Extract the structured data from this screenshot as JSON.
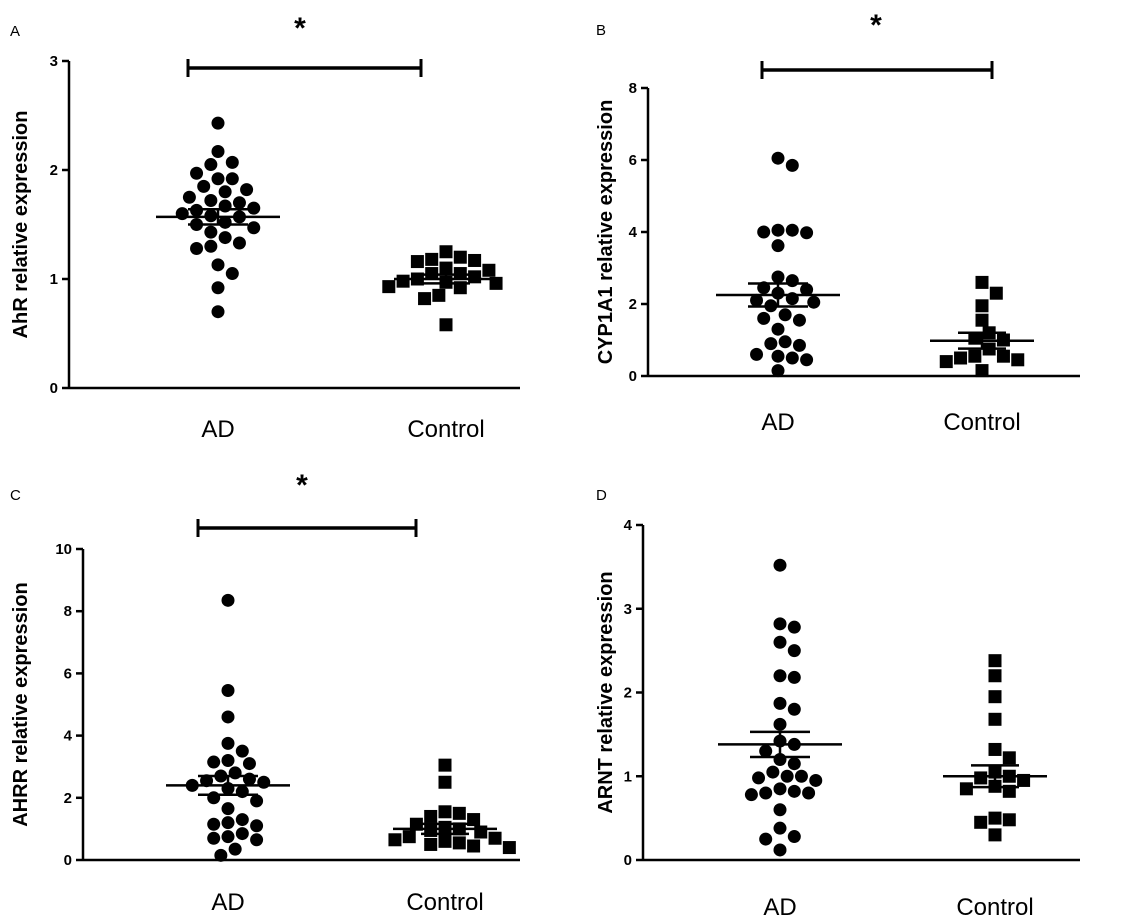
{
  "chart_data": [
    {
      "type": "scatter",
      "panel_label": "A",
      "categories": [
        "AD",
        "Control"
      ],
      "ylabel": "AhR relative expression",
      "ylim": [
        0,
        3
      ],
      "yticks": [
        "0",
        "1",
        "2",
        "3"
      ],
      "significance": "*",
      "series": [
        {
          "category": "AD",
          "marker": "circle",
          "values": [
            2.43,
            2.17,
            2.07,
            2.05,
            1.97,
            1.92,
            1.92,
            1.85,
            1.82,
            1.8,
            1.75,
            1.72,
            1.7,
            1.67,
            1.65,
            1.63,
            1.6,
            1.58,
            1.57,
            1.52,
            1.5,
            1.47,
            1.43,
            1.38,
            1.33,
            1.3,
            1.28,
            1.13,
            1.05,
            0.92,
            0.7
          ],
          "mean": 1.57,
          "sem": 0.07
        },
        {
          "category": "Control",
          "marker": "square",
          "values": [
            1.25,
            1.2,
            1.18,
            1.17,
            1.16,
            1.1,
            1.08,
            1.05,
            1.05,
            1.02,
            1.0,
            0.98,
            0.97,
            0.96,
            0.93,
            0.92,
            0.85,
            0.82,
            0.58
          ],
          "mean": 1.0,
          "sem": 0.04
        }
      ]
    },
    {
      "type": "scatter",
      "panel_label": "B",
      "categories": [
        "AD",
        "Control"
      ],
      "ylabel": "CYP1A1 relative expression",
      "ylim": [
        0,
        8
      ],
      "yticks": [
        "0",
        "2",
        "4",
        "6",
        "8"
      ],
      "significance": "*",
      "series": [
        {
          "category": "AD",
          "marker": "circle",
          "values": [
            6.05,
            5.85,
            4.05,
            4.05,
            4.0,
            3.98,
            3.62,
            2.75,
            2.65,
            2.45,
            2.4,
            2.3,
            2.15,
            2.1,
            2.05,
            1.95,
            1.7,
            1.6,
            1.55,
            1.3,
            0.95,
            0.9,
            0.85,
            0.6,
            0.55,
            0.5,
            0.45,
            0.15
          ],
          "mean": 2.25,
          "sem": 0.32
        },
        {
          "category": "Control",
          "marker": "square",
          "values": [
            2.6,
            2.3,
            1.95,
            1.55,
            1.2,
            1.05,
            1.0,
            0.75,
            0.55,
            0.55,
            0.5,
            0.45,
            0.4,
            0.15
          ],
          "mean": 0.98,
          "sem": 0.22
        }
      ]
    },
    {
      "type": "scatter",
      "panel_label": "C",
      "categories": [
        "AD",
        "Control"
      ],
      "ylabel": "AHRR  relative expression",
      "ylim": [
        0,
        10
      ],
      "yticks": [
        "0",
        "2",
        "4",
        "6",
        "8",
        "10"
      ],
      "significance": "*",
      "series": [
        {
          "category": "AD",
          "marker": "circle",
          "values": [
            8.35,
            5.45,
            4.6,
            3.75,
            3.5,
            3.2,
            3.15,
            3.1,
            2.8,
            2.7,
            2.6,
            2.55,
            2.5,
            2.4,
            2.3,
            2.2,
            2.0,
            1.9,
            1.65,
            1.3,
            1.2,
            1.15,
            1.1,
            0.85,
            0.75,
            0.7,
            0.65,
            0.35,
            0.15
          ],
          "mean": 2.4,
          "sem": 0.3
        },
        {
          "category": "Control",
          "marker": "square",
          "values": [
            3.05,
            2.5,
            1.55,
            1.5,
            1.4,
            1.3,
            1.15,
            1.05,
            1.0,
            0.95,
            0.9,
            0.75,
            0.7,
            0.65,
            0.6,
            0.55,
            0.5,
            0.45,
            0.4
          ],
          "mean": 1.0,
          "sem": 0.16
        }
      ]
    },
    {
      "type": "scatter",
      "panel_label": "D",
      "categories": [
        "AD",
        "Control"
      ],
      "ylabel": "ARNT  relative expression",
      "ylim": [
        0,
        4
      ],
      "yticks": [
        "0",
        "1",
        "2",
        "3",
        "4"
      ],
      "significance": "",
      "series": [
        {
          "category": "AD",
          "marker": "circle",
          "values": [
            3.52,
            2.82,
            2.78,
            2.6,
            2.5,
            2.2,
            2.18,
            1.87,
            1.8,
            1.62,
            1.42,
            1.38,
            1.3,
            1.2,
            1.15,
            1.05,
            1.0,
            1.0,
            0.98,
            0.95,
            0.85,
            0.82,
            0.8,
            0.8,
            0.78,
            0.6,
            0.38,
            0.28,
            0.25,
            0.12
          ],
          "mean": 1.38,
          "sem": 0.15
        },
        {
          "category": "Control",
          "marker": "square",
          "values": [
            2.38,
            2.2,
            1.95,
            1.68,
            1.32,
            1.22,
            1.05,
            1.0,
            0.98,
            0.95,
            0.88,
            0.85,
            0.82,
            0.5,
            0.48,
            0.45,
            0.3
          ],
          "mean": 1.0,
          "sem": 0.13
        }
      ]
    }
  ]
}
